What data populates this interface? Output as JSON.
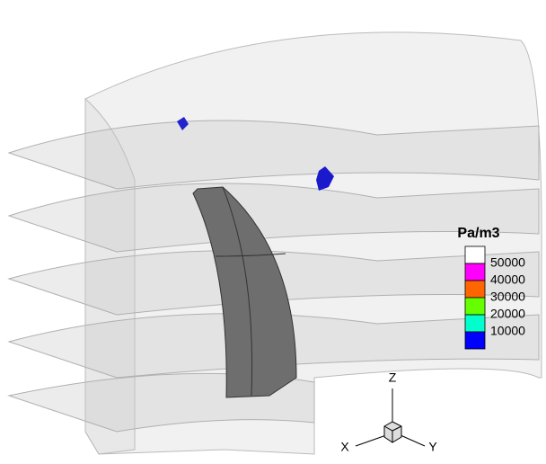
{
  "legend": {
    "title": "Pa/m3",
    "levels": [
      50000,
      40000,
      30000,
      20000,
      10000
    ],
    "colors": [
      "#ffffff",
      "#ff00ff",
      "#ff6600",
      "#66ff00",
      "#00ffcc",
      "#0000ff"
    ]
  },
  "axes": {
    "z": "Z",
    "x": "X",
    "y": "Y"
  }
}
